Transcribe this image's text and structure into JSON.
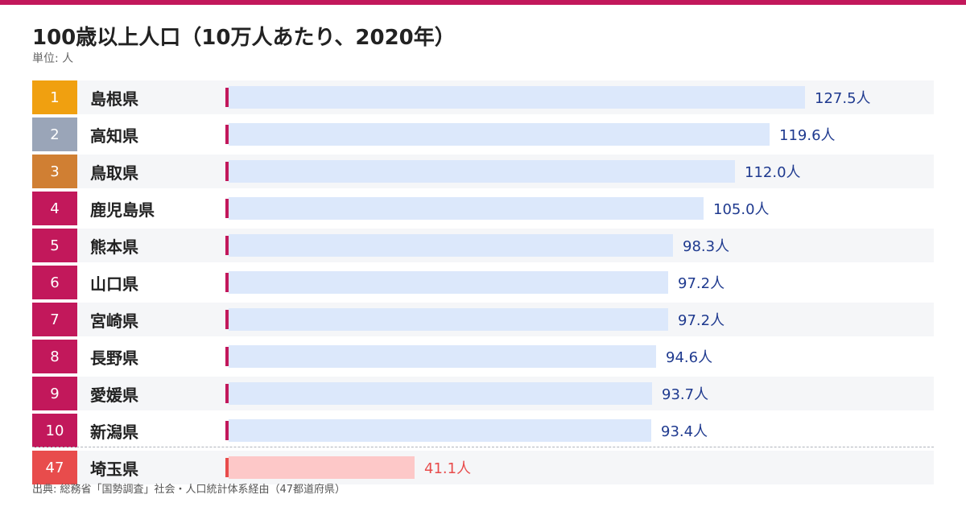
{
  "header": {
    "title": "100歳以上人口（10万人あたり、2020年）",
    "unit": "単位: 人"
  },
  "footer": {
    "source": "出典: 総務省「国勢調査」社会・人口統計体系経由（47都道府県）"
  },
  "colors": {
    "accent": "#c2185b",
    "gold": "#f0a010",
    "silver": "#9aa5b8",
    "bronze": "#d07f33",
    "bar": "#dce8fb",
    "bar_highlight": "#fdc8c8",
    "rank_highlight": "#e84c4c",
    "value_text": "#1f3a8f",
    "value_highlight_text": "#e84c4c"
  },
  "chart_data": {
    "type": "bar",
    "orientation": "horizontal",
    "title": "100歳以上人口（10万人あたり、2020年）",
    "unit": "人",
    "rows": [
      {
        "rank": "1",
        "name": "島根県",
        "value": 127.5,
        "label": "127.5人"
      },
      {
        "rank": "2",
        "name": "高知県",
        "value": 119.6,
        "label": "119.6人"
      },
      {
        "rank": "3",
        "name": "鳥取県",
        "value": 112.0,
        "label": "112.0人"
      },
      {
        "rank": "4",
        "name": "鹿児島県",
        "value": 105.0,
        "label": "105.0人"
      },
      {
        "rank": "5",
        "name": "熊本県",
        "value": 98.3,
        "label": "98.3人"
      },
      {
        "rank": "6",
        "name": "山口県",
        "value": 97.2,
        "label": "97.2人"
      },
      {
        "rank": "7",
        "name": "宮崎県",
        "value": 97.2,
        "label": "97.2人"
      },
      {
        "rank": "8",
        "name": "長野県",
        "value": 94.6,
        "label": "94.6人"
      },
      {
        "rank": "9",
        "name": "愛媛県",
        "value": 93.7,
        "label": "93.7人"
      },
      {
        "rank": "10",
        "name": "新潟県",
        "value": 93.4,
        "label": "93.4人"
      },
      {
        "rank": "47",
        "name": "埼玉県",
        "value": 41.1,
        "label": "41.1人",
        "highlight": true
      }
    ],
    "xlim": [
      0,
      127.5
    ],
    "grid": false
  }
}
